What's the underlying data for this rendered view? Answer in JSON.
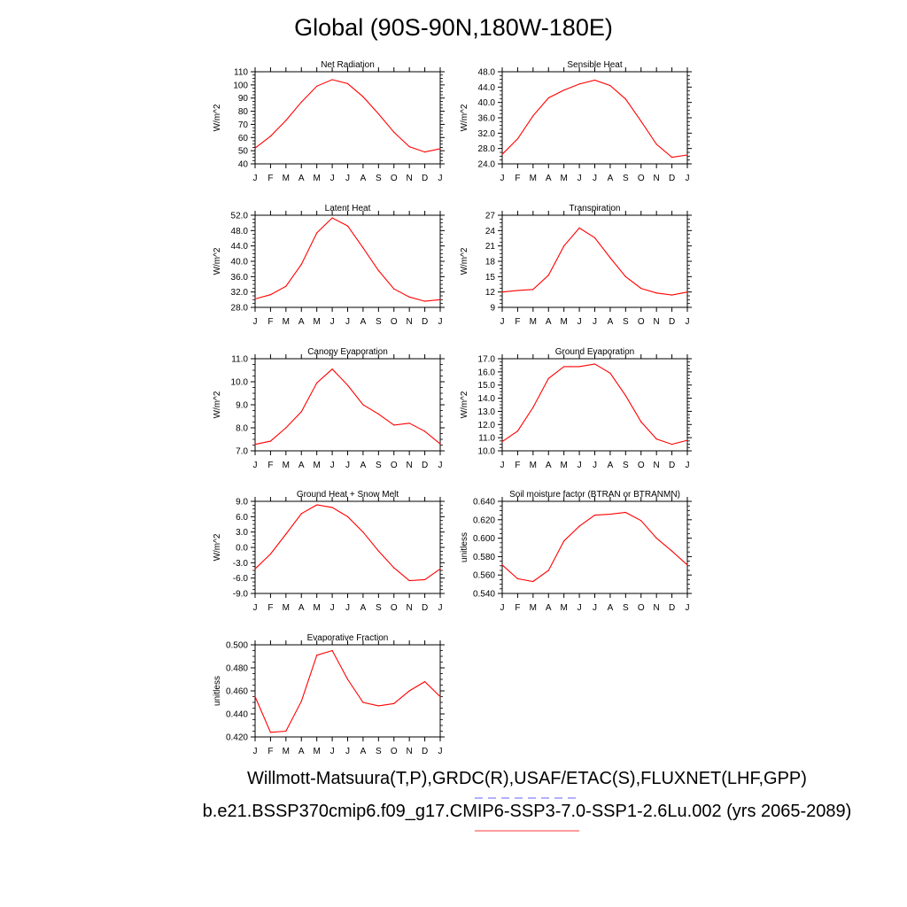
{
  "page": {
    "title": "Global (90S-90N,180W-180E)",
    "footer_line1": "Willmott-Matsuura(T,P),GRDC(R),USAF/ETAC(S),FLUXNET(LHF,GPP)",
    "footer_line2": "b.e21.BSSP370cmip6.f09_g17.CMIP6-SSP3-7.0-SSP1-2.6Lu.002 (yrs 2065-2089)"
  },
  "colors": {
    "series": "#ff0000",
    "obs_dash": "#8080ff",
    "model_line": "#ff6060",
    "axis": "#000000"
  },
  "chart_data": [
    {
      "type": "line",
      "title": "Net Radiation",
      "ylabel": "W/m^2",
      "categories": [
        "J",
        "F",
        "M",
        "A",
        "M",
        "J",
        "J",
        "A",
        "S",
        "O",
        "N",
        "D",
        "J"
      ],
      "ylim": [
        40,
        110
      ],
      "yticks": [
        "40",
        "50",
        "60",
        "70",
        "80",
        "90",
        "100",
        "110"
      ],
      "values": [
        52,
        61,
        73,
        87,
        99,
        104,
        101,
        91,
        78,
        64,
        53,
        49,
        51.5
      ]
    },
    {
      "type": "line",
      "title": "Sensible Heat",
      "ylabel": "W/m^2",
      "categories": [
        "J",
        "F",
        "M",
        "A",
        "M",
        "J",
        "J",
        "A",
        "S",
        "O",
        "N",
        "D",
        "J"
      ],
      "ylim": [
        24,
        48
      ],
      "yticks": [
        "24.0",
        "28.0",
        "32.0",
        "36.0",
        "40.0",
        "44.0",
        "48.0"
      ],
      "values": [
        26.5,
        30.5,
        36.5,
        41.2,
        43.2,
        44.8,
        45.8,
        44.4,
        40.9,
        35.1,
        29.1,
        25.7,
        26.3
      ]
    },
    {
      "type": "line",
      "title": "Latent Heat",
      "ylabel": "W/m^2",
      "categories": [
        "J",
        "F",
        "M",
        "A",
        "M",
        "J",
        "J",
        "A",
        "S",
        "O",
        "N",
        "D",
        "J"
      ],
      "ylim": [
        28,
        52
      ],
      "yticks": [
        "28.0",
        "32.0",
        "36.0",
        "40.0",
        "44.0",
        "48.0",
        "52.0"
      ],
      "values": [
        30.2,
        31.3,
        33.5,
        39.2,
        47.4,
        51.3,
        49.2,
        43.5,
        37.6,
        32.8,
        30.7,
        29.6,
        30.0
      ]
    },
    {
      "type": "line",
      "title": "Transpiration",
      "ylabel": "W/m^2",
      "categories": [
        "J",
        "F",
        "M",
        "A",
        "M",
        "J",
        "J",
        "A",
        "S",
        "O",
        "N",
        "D",
        "J"
      ],
      "ylim": [
        9,
        27
      ],
      "yticks": [
        "9",
        "12",
        "15",
        "18",
        "21",
        "24",
        "27"
      ],
      "values": [
        12.0,
        12.3,
        12.5,
        15.3,
        21.0,
        24.5,
        22.6,
        18.7,
        15.0,
        12.7,
        11.8,
        11.4,
        12.0
      ]
    },
    {
      "type": "line",
      "title": "Canopy Evaporation",
      "ylabel": "W/m^2",
      "categories": [
        "J",
        "F",
        "M",
        "A",
        "M",
        "J",
        "J",
        "A",
        "S",
        "O",
        "N",
        "D",
        "J"
      ],
      "ylim": [
        7,
        11
      ],
      "yticks": [
        "7.0",
        "8.0",
        "9.0",
        "10.0",
        "11.0"
      ],
      "values": [
        7.28,
        7.42,
        8.0,
        8.7,
        9.95,
        10.55,
        9.85,
        9.0,
        8.6,
        8.12,
        8.2,
        7.85,
        7.3
      ]
    },
    {
      "type": "line",
      "title": "Ground Evaporation",
      "ylabel": "W/m^2",
      "categories": [
        "J",
        "F",
        "M",
        "A",
        "M",
        "J",
        "J",
        "A",
        "S",
        "O",
        "N",
        "D",
        "J"
      ],
      "ylim": [
        10,
        17
      ],
      "yticks": [
        "10.0",
        "11.0",
        "12.0",
        "13.0",
        "14.0",
        "15.0",
        "16.0",
        "17.0"
      ],
      "values": [
        10.7,
        11.5,
        13.3,
        15.5,
        16.4,
        16.4,
        16.6,
        15.9,
        14.2,
        12.2,
        10.9,
        10.5,
        10.8
      ]
    },
    {
      "type": "line",
      "title": "Ground Heat + Snow Melt",
      "ylabel": "W/m^2",
      "categories": [
        "J",
        "F",
        "M",
        "A",
        "M",
        "J",
        "J",
        "A",
        "S",
        "O",
        "N",
        "D",
        "J"
      ],
      "ylim": [
        -9,
        9
      ],
      "yticks": [
        "-9.0",
        "-6.0",
        "-3.0",
        "0.0",
        "3.0",
        "6.0",
        "9.0"
      ],
      "values": [
        -4.2,
        -1.3,
        2.6,
        6.6,
        8.3,
        7.8,
        6.0,
        3.0,
        -0.7,
        -4.0,
        -6.5,
        -6.3,
        -4.2
      ]
    },
    {
      "type": "line",
      "title": "Soil moisture factor (BTRAN or BTRANMN)",
      "ylabel": "unitless",
      "categories": [
        "J",
        "F",
        "M",
        "A",
        "M",
        "J",
        "J",
        "A",
        "S",
        "O",
        "N",
        "D",
        "J"
      ],
      "ylim": [
        0.54,
        0.64
      ],
      "yticks": [
        "0.540",
        "0.560",
        "0.580",
        "0.600",
        "0.620",
        "0.640"
      ],
      "values": [
        0.571,
        0.556,
        0.553,
        0.565,
        0.597,
        0.613,
        0.625,
        0.626,
        0.628,
        0.619,
        0.6,
        0.586,
        0.571
      ]
    },
    {
      "type": "line",
      "title": "Evaporative Fraction",
      "ylabel": "unitless",
      "categories": [
        "J",
        "F",
        "M",
        "A",
        "M",
        "J",
        "J",
        "A",
        "S",
        "O",
        "N",
        "D",
        "J"
      ],
      "ylim": [
        0.42,
        0.5
      ],
      "yticks": [
        "0.420",
        "0.440",
        "0.460",
        "0.480",
        "0.500"
      ],
      "values": [
        0.455,
        0.424,
        0.425,
        0.451,
        0.491,
        0.495,
        0.47,
        0.45,
        0.447,
        0.449,
        0.46,
        0.468,
        0.455
      ]
    }
  ]
}
